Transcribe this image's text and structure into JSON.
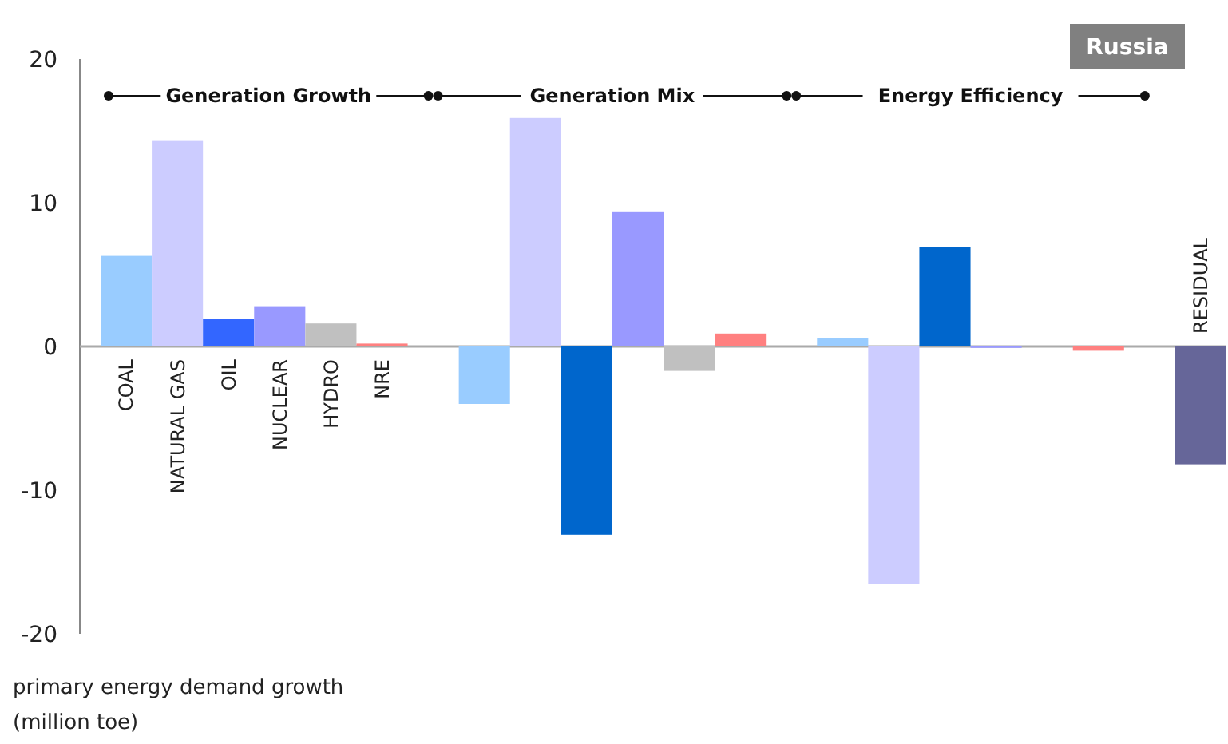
{
  "chart_data": {
    "type": "bar",
    "title": "Russia",
    "categories": [
      "COAL",
      "NATURAL GAS",
      "OIL",
      "NUCLEAR",
      "HYDRO",
      "NRE",
      null,
      null,
      null,
      null,
      null,
      null,
      null,
      null,
      null,
      null,
      null,
      null,
      null,
      null,
      null,
      "RESIDUAL"
    ],
    "values": [
      6.3,
      14.3,
      1.9,
      2.8,
      1.6,
      0.2,
      null,
      -4.0,
      15.9,
      -13.1,
      9.4,
      -1.7,
      0.9,
      null,
      0.6,
      -16.5,
      6.9,
      -0.1,
      0,
      -0.3,
      null,
      -8.2
    ],
    "colors": [
      "#99ccff",
      "#ccccff",
      "#3366ff",
      "#9999ff",
      "#c0c0c0",
      "#ff8080",
      null,
      "#99ccff",
      "#ccccff",
      "#0066cc",
      "#9999ff",
      "#c0c0c0",
      "#ff8080",
      null,
      "#99ccff",
      "#ccccff",
      "#0066cc",
      "#9999ff",
      "#c0c0c0",
      "#ff8080",
      null,
      "#666699"
    ],
    "ylim": [
      -20,
      20
    ],
    "yticks": [
      -20,
      -10,
      0,
      10,
      20
    ],
    "ylabel": "primary energy demand growth (million toe)",
    "annotations": [
      "Generation Growth",
      "Generation Mix",
      "Energy Efficiency"
    ],
    "grid": false
  }
}
